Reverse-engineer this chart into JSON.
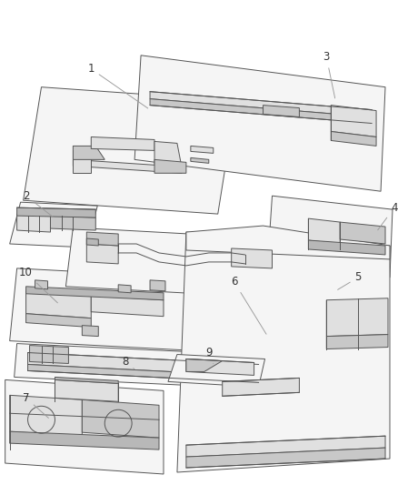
{
  "background_color": "#ffffff",
  "line_color": "#555555",
  "label_color": "#333333",
  "figsize": [
    4.38,
    5.33
  ],
  "dpi": 100,
  "lw": 0.7
}
